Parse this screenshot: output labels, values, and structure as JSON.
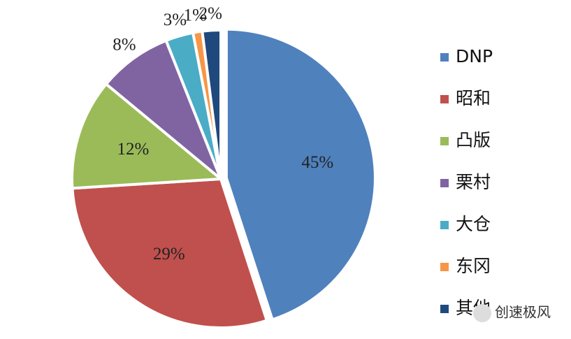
{
  "chart_data": {
    "type": "pie",
    "categories": [
      "DNP",
      "昭和",
      "凸版",
      "栗村",
      "大仓",
      "东冈",
      "其他"
    ],
    "values": [
      45,
      29,
      12,
      8,
      3,
      1,
      2
    ],
    "value_labels": [
      "45%",
      "29%",
      "12%",
      "8%",
      "3%",
      "1%",
      "2%"
    ],
    "colors": [
      "#4f81bd",
      "#c0504d",
      "#9bbb59",
      "#8064a2",
      "#4bacc6",
      "#f79646",
      "#1f497d"
    ],
    "legend": "right"
  },
  "watermark": "创速极风"
}
